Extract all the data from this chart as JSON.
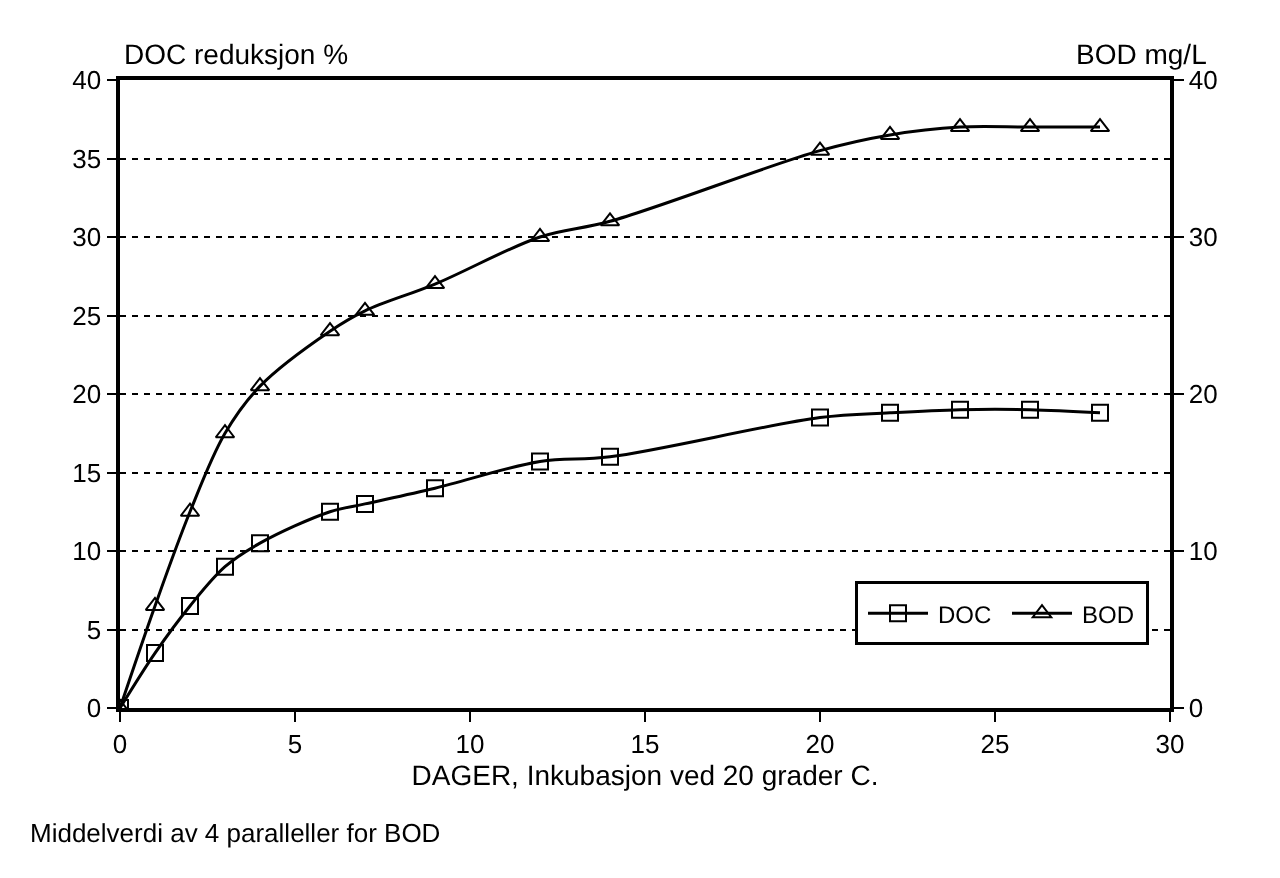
{
  "chart_data": {
    "type": "line",
    "xlabel": "DAGER, Inkubasjon ved 20 grader C.",
    "ylabel": "DOC reduksjon %",
    "y2label": "BOD mg/L",
    "annotations": [
      "Middelverdi av 4 paralleller for BOD"
    ],
    "xlim": [
      0,
      30
    ],
    "xticks": [
      0,
      5,
      10,
      15,
      20,
      25,
      30
    ],
    "ylim": [
      0,
      40
    ],
    "yticks": [
      0,
      5,
      10,
      15,
      20,
      25,
      30,
      35,
      40
    ],
    "y2lim": [
      0,
      40
    ],
    "y2ticks": [
      0,
      10,
      20,
      30,
      40
    ],
    "grid": "y",
    "legend": "bottom right",
    "series": [
      {
        "name": "DOC",
        "color": "#000000",
        "marker": "square",
        "x": [
          0,
          1,
          2,
          3,
          4,
          6,
          7,
          9,
          12,
          14,
          20,
          22,
          24,
          26,
          28
        ],
        "values": [
          0,
          3.5,
          6.5,
          9,
          10.5,
          12.5,
          13,
          14,
          15.7,
          16,
          18.5,
          18.8,
          19,
          19,
          18.8
        ]
      },
      {
        "name": "BOD",
        "color": "#000000",
        "marker": "triangle",
        "axis": "y2",
        "x": [
          0,
          1,
          2,
          3,
          4,
          6,
          7,
          9,
          12,
          14,
          20,
          22,
          24,
          26,
          28
        ],
        "values": [
          0,
          6.5,
          12.5,
          17.5,
          20.5,
          24,
          25.3,
          27,
          30,
          31,
          35.5,
          36.5,
          37,
          37,
          37
        ]
      }
    ]
  }
}
